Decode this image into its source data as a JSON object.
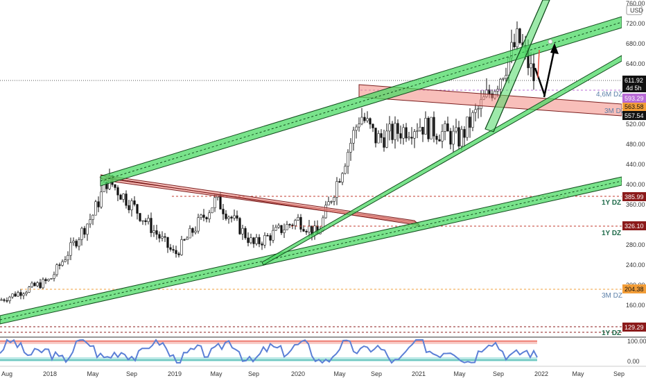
{
  "price_scale": {
    "currency": "USD",
    "ticks": [
      "760.00",
      "720.00",
      "680.00",
      "640.00",
      "600.00",
      "560.00",
      "520.00",
      "480.00",
      "440.00",
      "400.00",
      "360.00",
      "320.00",
      "280.00",
      "240.00",
      "200.00",
      "160.00",
      "120.00"
    ]
  },
  "time_axis": {
    "labels": [
      "Aug",
      "2018",
      "May",
      "Sep",
      "2019",
      "May",
      "Sep",
      "2020",
      "May",
      "Sep",
      "2021",
      "May",
      "Sep",
      "2022",
      "May",
      "Sep"
    ]
  },
  "price_badges": {
    "last_price": "611.92",
    "countdown": "4d 5h",
    "violet": "593.29",
    "orange": "563.58",
    "black": "557.54",
    "level_386": "385.99",
    "level_326": "326.10",
    "level_204": "204.38",
    "level_129": "129.29"
  },
  "zone_labels": {
    "dz_4_6m": "4,6M DZ",
    "dz_3m_top": "3M DZ",
    "dz_1y_a": "1Y DZ",
    "dz_1y_b": "1Y DZ",
    "dz_3m_low": "3M DZ",
    "dz_1y_c": "1Y DZ"
  },
  "oscillator": {
    "ticks": [
      "100.00",
      "0.00"
    ]
  },
  "colors": {
    "up_candle": "#26a69a",
    "down_candle": "#ef5350",
    "candle_body": "#111111",
    "green_channel": "#4cd964",
    "red_zone": "#f28b82",
    "osc_line": "#5b7fd6",
    "last_price_bg": "#111111",
    "violet_bg": "#b86bd6",
    "orange_bg": "#f29d38",
    "maroon_bg": "#8b1a1a"
  },
  "chart_data": {
    "type": "candlestick",
    "x_axis": "time (weekly)",
    "y_axis": "price (USD)",
    "ylim": [
      110,
      770
    ],
    "approx_close_path": [
      {
        "t": "Aug 2017",
        "v": 170
      },
      {
        "t": "2018",
        "v": 210
      },
      {
        "t": "May 2018",
        "v": 340
      },
      {
        "t": "Jun 2018",
        "v": 410
      },
      {
        "t": "Sep 2018",
        "v": 360
      },
      {
        "t": "2019",
        "v": 260
      },
      {
        "t": "May 2019",
        "v": 370
      },
      {
        "t": "Sep 2019",
        "v": 280
      },
      {
        "t": "2020",
        "v": 330
      },
      {
        "t": "Mar 2020",
        "v": 300
      },
      {
        "t": "May 2020",
        "v": 420
      },
      {
        "t": "Aug 2020",
        "v": 540
      },
      {
        "t": "Sep 2020",
        "v": 490
      },
      {
        "t": "2021",
        "v": 520
      },
      {
        "t": "May 2021",
        "v": 490
      },
      {
        "t": "Sep 2021",
        "v": 610
      },
      {
        "t": "Nov 2021",
        "v": 690
      },
      {
        "t": "Dec 2021",
        "v": 611.92
      }
    ],
    "horizontal_levels": [
      593.29,
      563.58,
      557.54,
      385.99,
      326.1,
      204.38,
      129.29
    ],
    "last_price": 611.92
  }
}
